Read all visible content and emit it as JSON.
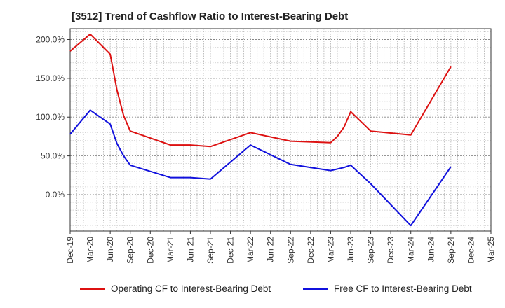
{
  "chart_data": {
    "type": "line",
    "title": "[3512]  Trend of Cashflow Ratio to Interest-Bearing Debt",
    "xlabel": "",
    "ylabel": "",
    "x_ticks": [
      "Dec-19",
      "Mar-20",
      "Jun-20",
      "Sep-20",
      "Dec-20",
      "Mar-21",
      "Jun-21",
      "Sep-21",
      "Dec-21",
      "Mar-22",
      "Jun-22",
      "Sep-22",
      "Dec-22",
      "Mar-23",
      "Jun-23",
      "Sep-23",
      "Dec-23",
      "Mar-24",
      "Jun-24",
      "Sep-24",
      "Dec-24",
      "Mar-25"
    ],
    "y_ticks": [
      "0.0%",
      "50.0%",
      "100.0%",
      "150.0%",
      "200.0%"
    ],
    "y_tick_values": [
      0,
      50,
      100,
      150,
      200
    ],
    "ylim": [
      -47,
      214
    ],
    "grid": true,
    "legend_position": "bottom",
    "series": [
      {
        "name": "Operating CF to Interest-Bearing Debt",
        "color": "#dd1111",
        "points": [
          [
            "Dec-19",
            185
          ],
          [
            "Mar-20",
            207
          ],
          [
            "Jun-20",
            181
          ],
          [
            "Jul-20",
            135
          ],
          [
            "Aug-20",
            102
          ],
          [
            "Sep-20",
            82
          ],
          [
            "Mar-21",
            64
          ],
          [
            "Jun-21",
            64
          ],
          [
            "Sep-21",
            62
          ],
          [
            "Mar-22",
            80
          ],
          [
            "Sep-22",
            69
          ],
          [
            "Mar-23",
            67
          ],
          [
            "Apr-23",
            75
          ],
          [
            "May-23",
            87
          ],
          [
            "Jun-23",
            107
          ],
          [
            "Sep-23",
            82
          ],
          [
            "Mar-24",
            77
          ],
          [
            "Sep-24",
            165
          ]
        ]
      },
      {
        "name": "Free CF to Interest-Bearing Debt",
        "color": "#1111dd",
        "points": [
          [
            "Dec-19",
            78
          ],
          [
            "Mar-20",
            109
          ],
          [
            "Jun-20",
            91
          ],
          [
            "Jul-20",
            66
          ],
          [
            "Aug-20",
            50
          ],
          [
            "Sep-20",
            38
          ],
          [
            "Mar-21",
            22
          ],
          [
            "Jun-21",
            22
          ],
          [
            "Sep-21",
            20
          ],
          [
            "Mar-22",
            64
          ],
          [
            "Sep-22",
            39
          ],
          [
            "Mar-23",
            31
          ],
          [
            "Apr-23",
            33
          ],
          [
            "May-23",
            35
          ],
          [
            "Jun-23",
            38
          ],
          [
            "Sep-23",
            14
          ],
          [
            "Mar-24",
            -40
          ],
          [
            "Sep-24",
            36
          ]
        ]
      }
    ]
  }
}
